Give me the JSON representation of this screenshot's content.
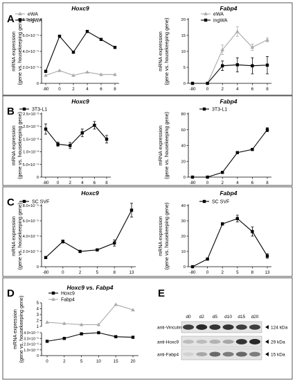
{
  "panel_labels": [
    "A",
    "B",
    "C",
    "D",
    "E"
  ],
  "y_label_line1": "mRNA expression",
  "y_label_line2": "(gene vs. housekeeping gene)",
  "chart_data": [
    {
      "id": "A1",
      "type": "line",
      "title": "Hoxc9",
      "categories": [
        "-80",
        "0",
        "2",
        "4",
        "6",
        "8"
      ],
      "ticks": [
        "0",
        "2.0×10⁻⁴",
        "4.0×10⁻⁴",
        "6.0×10⁻⁴",
        "8.0×10⁻⁴"
      ],
      "ylim": [
        0,
        8
      ],
      "series": [
        {
          "name": "eWA",
          "color": "#aaaaaa",
          "marker": "triangle",
          "values": [
            1.0,
            1.6,
            1.0,
            1.4,
            1.1,
            1.1
          ]
        },
        {
          "name": "ingWA",
          "color": "#000000",
          "marker": "square",
          "values": [
            1.5,
            5.9,
            3.9,
            6.5,
            5.5,
            4.5
          ]
        }
      ],
      "legend": "top-left"
    },
    {
      "id": "A2",
      "type": "line",
      "title": "Fabp4",
      "categories": [
        "-80",
        "0",
        "2",
        "4",
        "6",
        "8"
      ],
      "ticks": [
        "0",
        "5",
        "10",
        "15",
        "20"
      ],
      "ylim": [
        0,
        20
      ],
      "series": [
        {
          "name": "eWA",
          "color": "#aaaaaa",
          "marker": "triangle",
          "values": [
            0,
            0,
            10.5,
            16.2,
            11.3,
            13.6
          ],
          "err": [
            0,
            0,
            1.5,
            1.5,
            1.0,
            0.6
          ]
        },
        {
          "name": "ingWA",
          "color": "#000000",
          "marker": "square",
          "values": [
            0,
            0,
            5.5,
            5.8,
            5.5,
            5.7
          ],
          "err": [
            0,
            0,
            1.5,
            2.2,
            2.5,
            2.7
          ]
        }
      ],
      "legend": "top-right"
    },
    {
      "id": "B1",
      "type": "line",
      "title": "Hoxc9",
      "categories": [
        "-80",
        "0",
        "2",
        "4",
        "6",
        "8"
      ],
      "ticks": [
        "0",
        "5.0×10⁻⁴",
        "1.0×10⁻³",
        "1.5×10⁻³",
        "2.0×10⁻³",
        "2.5×10⁻³"
      ],
      "ylim": [
        0,
        2.5
      ],
      "series": [
        {
          "name": "3T3-L1",
          "color": "#000000",
          "marker": "square",
          "values": [
            1.9,
            1.3,
            1.25,
            1.75,
            2.05,
            1.5
          ],
          "err": [
            0.2,
            0.08,
            0.12,
            0.15,
            0.15,
            0.15
          ]
        }
      ],
      "legend": "top-left"
    },
    {
      "id": "B2",
      "type": "line",
      "title": "Fabp4",
      "categories": [
        "-80",
        "0",
        "2",
        "4",
        "6",
        "8"
      ],
      "ticks": [
        "0",
        "20",
        "40",
        "60",
        "80"
      ],
      "ylim": [
        0,
        80
      ],
      "series": [
        {
          "name": "3T3-L1",
          "color": "#000000",
          "marker": "square",
          "values": [
            0,
            0,
            6,
            31,
            35,
            60
          ],
          "err": [
            0,
            0,
            0.5,
            1,
            1,
            2.5
          ]
        }
      ],
      "legend": "top-left"
    },
    {
      "id": "C1",
      "type": "line",
      "title": "Hoxc9",
      "categories": [
        "-80",
        "0",
        "2",
        "5",
        "8",
        "13"
      ],
      "ticks": [
        "0",
        "2.0×10⁻⁵",
        "4.0×10⁻⁵",
        "6.0×10⁻⁵",
        "8.0×10⁻⁵"
      ],
      "ylim": [
        0,
        8
      ],
      "series": [
        {
          "name": "SC SVF",
          "color": "#000000",
          "marker": "square",
          "values": [
            1.2,
            3.3,
            2.0,
            2.2,
            3.1,
            7.4
          ],
          "err": [
            0,
            0.2,
            0.15,
            0.1,
            0.4,
            0.9
          ]
        }
      ],
      "legend": "top-left"
    },
    {
      "id": "C2",
      "type": "line",
      "title": "Fabp4",
      "categories": [
        "-80",
        "0",
        "2",
        "5",
        "8",
        "13"
      ],
      "ticks": [
        "0",
        "10",
        "20",
        "30",
        "40"
      ],
      "ylim": [
        0,
        40
      ],
      "series": [
        {
          "name": "SC SVF",
          "color": "#000000",
          "marker": "square",
          "values": [
            0,
            5,
            28,
            31.5,
            23,
            7
          ],
          "err": [
            0,
            0.3,
            0.8,
            2.2,
            3,
            1.5
          ]
        }
      ],
      "legend": "top-left"
    },
    {
      "id": "D",
      "type": "line",
      "title": "Hoxc9 vs. Fabp4",
      "categories": [
        "0",
        "2",
        "5",
        "10",
        "15",
        "20"
      ],
      "ticks": [
        "0",
        "1.0×10⁻⁵",
        "2.0×10⁻⁵",
        "3.0×10⁻⁵",
        "4.0×10⁻⁵",
        "1",
        "2",
        "3",
        "4",
        "5"
      ],
      "series": [
        {
          "name": "Hoxc9",
          "color": "#000000",
          "marker": "square",
          "values": [
            2.5,
            3.0,
            3.8,
            4.0,
            3.3,
            3.2
          ]
        },
        {
          "name": "Fabp4",
          "color": "#aaaaaa",
          "marker": "triangle",
          "values": [
            1.7,
            1.5,
            1.3,
            1.3,
            4.7,
            3.8
          ]
        }
      ],
      "legend": "top-left"
    }
  ],
  "western": {
    "lanes": [
      "d0",
      "d2",
      "d5",
      "d10",
      "d15",
      "d20"
    ],
    "rows": [
      {
        "name": "anti-Vinculin",
        "size": "124 kDa",
        "intensity": [
          0.8,
          0.9,
          0.85,
          0.85,
          0.8,
          0.8
        ]
      },
      {
        "name": "anti-Hoxc9",
        "size": "29 kDa",
        "intensity": [
          0.2,
          0.2,
          0.25,
          0.3,
          0.85,
          0.9
        ]
      },
      {
        "name": "anti-Fabp4",
        "size": "15 kDa",
        "intensity": [
          0.1,
          0.3,
          0.6,
          0.5,
          0.6,
          0.5
        ]
      }
    ]
  }
}
